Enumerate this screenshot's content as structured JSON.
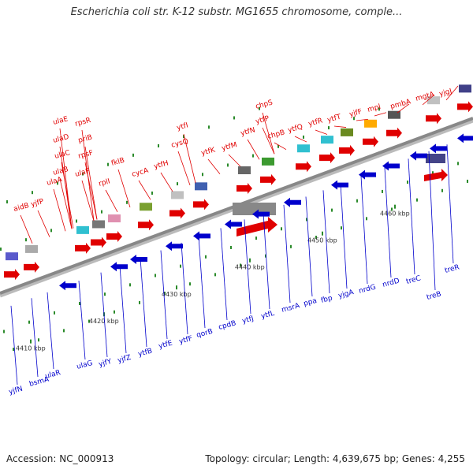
{
  "title": "Escherichia coli str. K-12 substr. MG1655 chromosome, comple...",
  "accession": "Accession: NC_000913",
  "summary": "Topology: circular; Length: 4,639,675 bp; Genes: 4,255",
  "ruler_labels": [
    "4410 kbp",
    "4420 kbp",
    "4430 kbp",
    "4440 kbp",
    "4450 kbp",
    "4460 kbp"
  ],
  "forward_genes": [
    "aidB",
    "yjfP",
    "ulaA",
    "ulaB",
    "ulaC",
    "ulaD",
    "ulaE",
    "ulaF",
    "rpsF",
    "priB",
    "rpsR",
    "rplI",
    "fklB",
    "cycA",
    "ytfH",
    "ytfI",
    "cysQ",
    "ytfK",
    "ytfM",
    "ytfN",
    "ytfP",
    "chpS",
    "chpB",
    "ytfQ",
    "ytfR",
    "ytfT",
    "yjfF",
    "mpl",
    "pmbA",
    "mgtA",
    "yjgJ"
  ],
  "reverse_genes": [
    "yjfN",
    "bsmA",
    "ulaR",
    "ulaG",
    "yjfY",
    "yjfZ",
    "ytfB",
    "ytfE",
    "ytfF",
    "qorB",
    "cpdB",
    "ytfJ",
    "ytfL",
    "msrA",
    "ppa",
    "fbp",
    "yjgA",
    "nrdG",
    "nrdD",
    "treC",
    "treB",
    "treR"
  ],
  "colors": {
    "forward": "#e00000",
    "reverse": "#0000cc",
    "backbone": "#888888",
    "ruler_tick": "#2a8a2a"
  }
}
